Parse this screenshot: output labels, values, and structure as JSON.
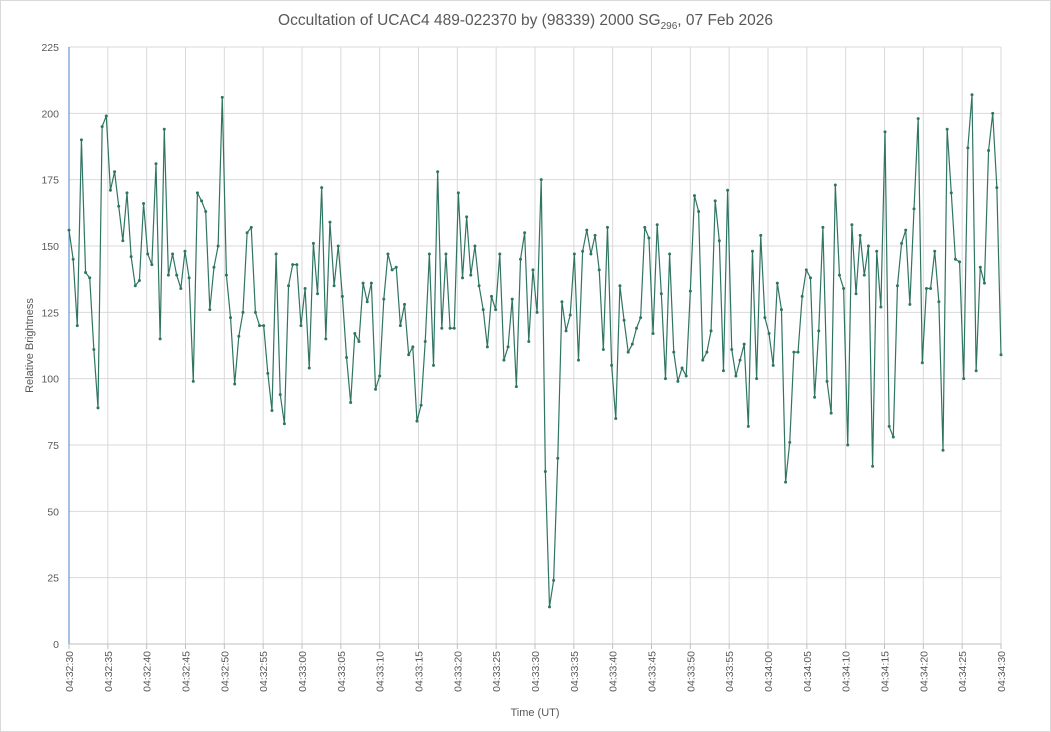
{
  "chart_data": {
    "type": "line",
    "title": "Occultation of UCAC4 489-022370 by (98339) 2000 SG",
    "title_subscript": "296",
    "title_suffix": ", 07 Feb 2026",
    "xlabel": "Time (UT)",
    "ylabel": "Relative Brightness",
    "ylim": [
      0,
      225
    ],
    "yticks": [
      0,
      25,
      50,
      75,
      100,
      125,
      150,
      175,
      200,
      225
    ],
    "x_range_seconds": [
      0,
      120
    ],
    "xtick_labels": [
      "04:32:30",
      "04:32:35",
      "04:32:40",
      "04:32:45",
      "04:32:50",
      "04:32:55",
      "04:33:00",
      "04:33:05",
      "04:33:10",
      "04:33:15",
      "04:33:20",
      "04:33:25",
      "04:33:30",
      "04:33:35",
      "04:33:40",
      "04:33:45",
      "04:33:50",
      "04:33:55",
      "04:34:00",
      "04:34:05",
      "04:34:10",
      "04:34:15",
      "04:34:20",
      "04:34:25",
      "04:34:30"
    ],
    "grid": true,
    "series": [
      {
        "name": "Relative Brightness",
        "color": "#2f7562",
        "values": [
          156,
          145,
          120,
          190,
          140,
          138,
          111,
          89,
          195,
          199,
          171,
          178,
          165,
          152,
          170,
          146,
          135,
          137,
          166,
          147,
          143,
          181,
          115,
          194,
          139,
          147,
          139,
          134,
          148,
          138,
          99,
          170,
          167,
          163,
          126,
          142,
          150,
          206,
          139,
          123,
          98,
          116,
          125,
          155,
          157,
          125,
          120,
          120,
          102,
          88,
          147,
          94,
          83,
          135,
          143,
          143,
          120,
          134,
          104,
          151,
          132,
          172,
          115,
          159,
          135,
          150,
          131,
          108,
          91,
          117,
          114,
          136,
          129,
          136,
          96,
          101,
          130,
          147,
          141,
          142,
          120,
          128,
          109,
          112,
          84,
          90,
          114,
          147,
          105,
          178,
          119,
          147,
          119,
          119,
          170,
          138,
          161,
          139,
          150,
          135,
          126,
          112,
          131,
          126,
          147,
          107,
          112,
          130,
          97,
          145,
          155,
          114,
          141,
          125,
          175,
          65,
          14,
          24,
          70,
          129,
          118,
          124,
          147,
          107,
          148,
          156,
          147,
          154,
          141,
          111,
          157,
          105,
          85,
          135,
          122,
          110,
          113,
          119,
          123,
          157,
          153,
          117,
          158,
          132,
          100,
          147,
          110,
          99,
          104,
          101,
          133,
          169,
          163,
          107,
          110,
          118,
          167,
          152,
          103,
          171,
          111,
          101,
          107,
          113,
          82,
          148,
          100,
          154,
          123,
          117,
          105,
          136,
          126,
          61,
          76,
          110,
          110,
          131,
          141,
          138,
          93,
          118,
          157,
          99,
          87,
          173,
          139,
          134,
          75,
          158,
          132,
          154,
          139,
          150,
          67,
          148,
          127,
          193,
          82,
          78,
          135,
          151,
          156,
          128,
          164,
          198,
          106,
          134,
          134,
          148,
          129,
          73,
          194,
          170,
          145,
          144,
          100,
          187,
          207,
          103,
          142,
          136,
          186,
          200,
          172,
          109
        ]
      }
    ]
  }
}
